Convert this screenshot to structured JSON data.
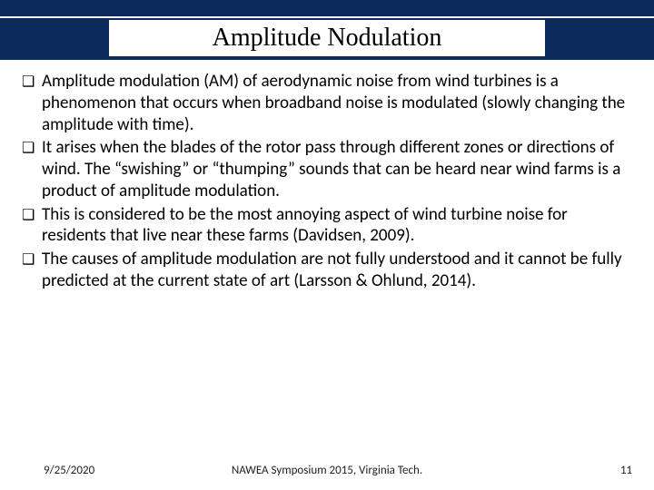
{
  "title": "Amplitude Nodulation",
  "bullets": [
    "Amplitude modulation (AM) of aerodynamic noise from wind turbines is a phenomenon that occurs when broadband noise is modulated (slowly changing the amplitude with time).",
    "It arises when the blades of the rotor pass through different zones or directions of wind. The “swishing” or “thumping” sounds that can be heard near wind farms is a product of amplitude modulation.",
    "This is considered to be the most annoying aspect of wind turbine noise for residents that live near these farms (Davidsen, 2009).",
    "The causes of amplitude modulation are not fully understood and it cannot be fully predicted at the current state of art (Larsson & Ohlund, 2014)."
  ],
  "footer": {
    "date": "9/25/2020",
    "venue": "NAWEA Symposium 2015, Virginia Tech.",
    "page": "11"
  },
  "colors": {
    "band": "#0b2a5b",
    "background": "#ffffff",
    "text": "#000000"
  }
}
